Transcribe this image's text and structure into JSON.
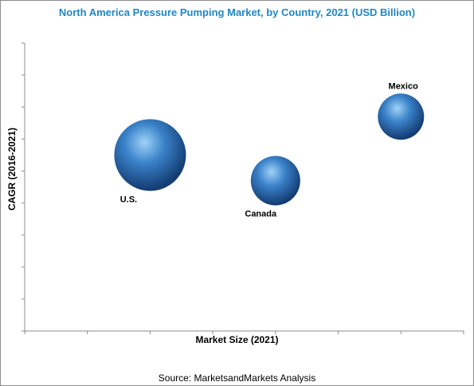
{
  "chart_data": {
    "type": "scatter",
    "subtype": "bubble",
    "title": "North America Pressure Pumping Market, by Country, 2021 (USD Billion)",
    "xlabel": "Market Size (2021)",
    "ylabel": "CAGR (2016-2021)",
    "xlim": [
      0,
      7
    ],
    "ylim": [
      0,
      9
    ],
    "grid": false,
    "legend": "none",
    "series": [
      {
        "points": [
          {
            "label": "U.S.",
            "x": 2,
            "y": 5.5,
            "size": 45
          },
          {
            "label": "Canada",
            "x": 4,
            "y": 4.7,
            "size": 31
          },
          {
            "label": "Mexico",
            "x": 6,
            "y": 6.7,
            "size": 29
          }
        ]
      }
    ],
    "colors": {
      "bubble_light": "#9fd3f7",
      "bubble_mid": "#3a82c9",
      "bubble_dark": "#143d73",
      "title": "#1f87c8"
    }
  },
  "source": "Source: MarketsandMarkets Analysis"
}
